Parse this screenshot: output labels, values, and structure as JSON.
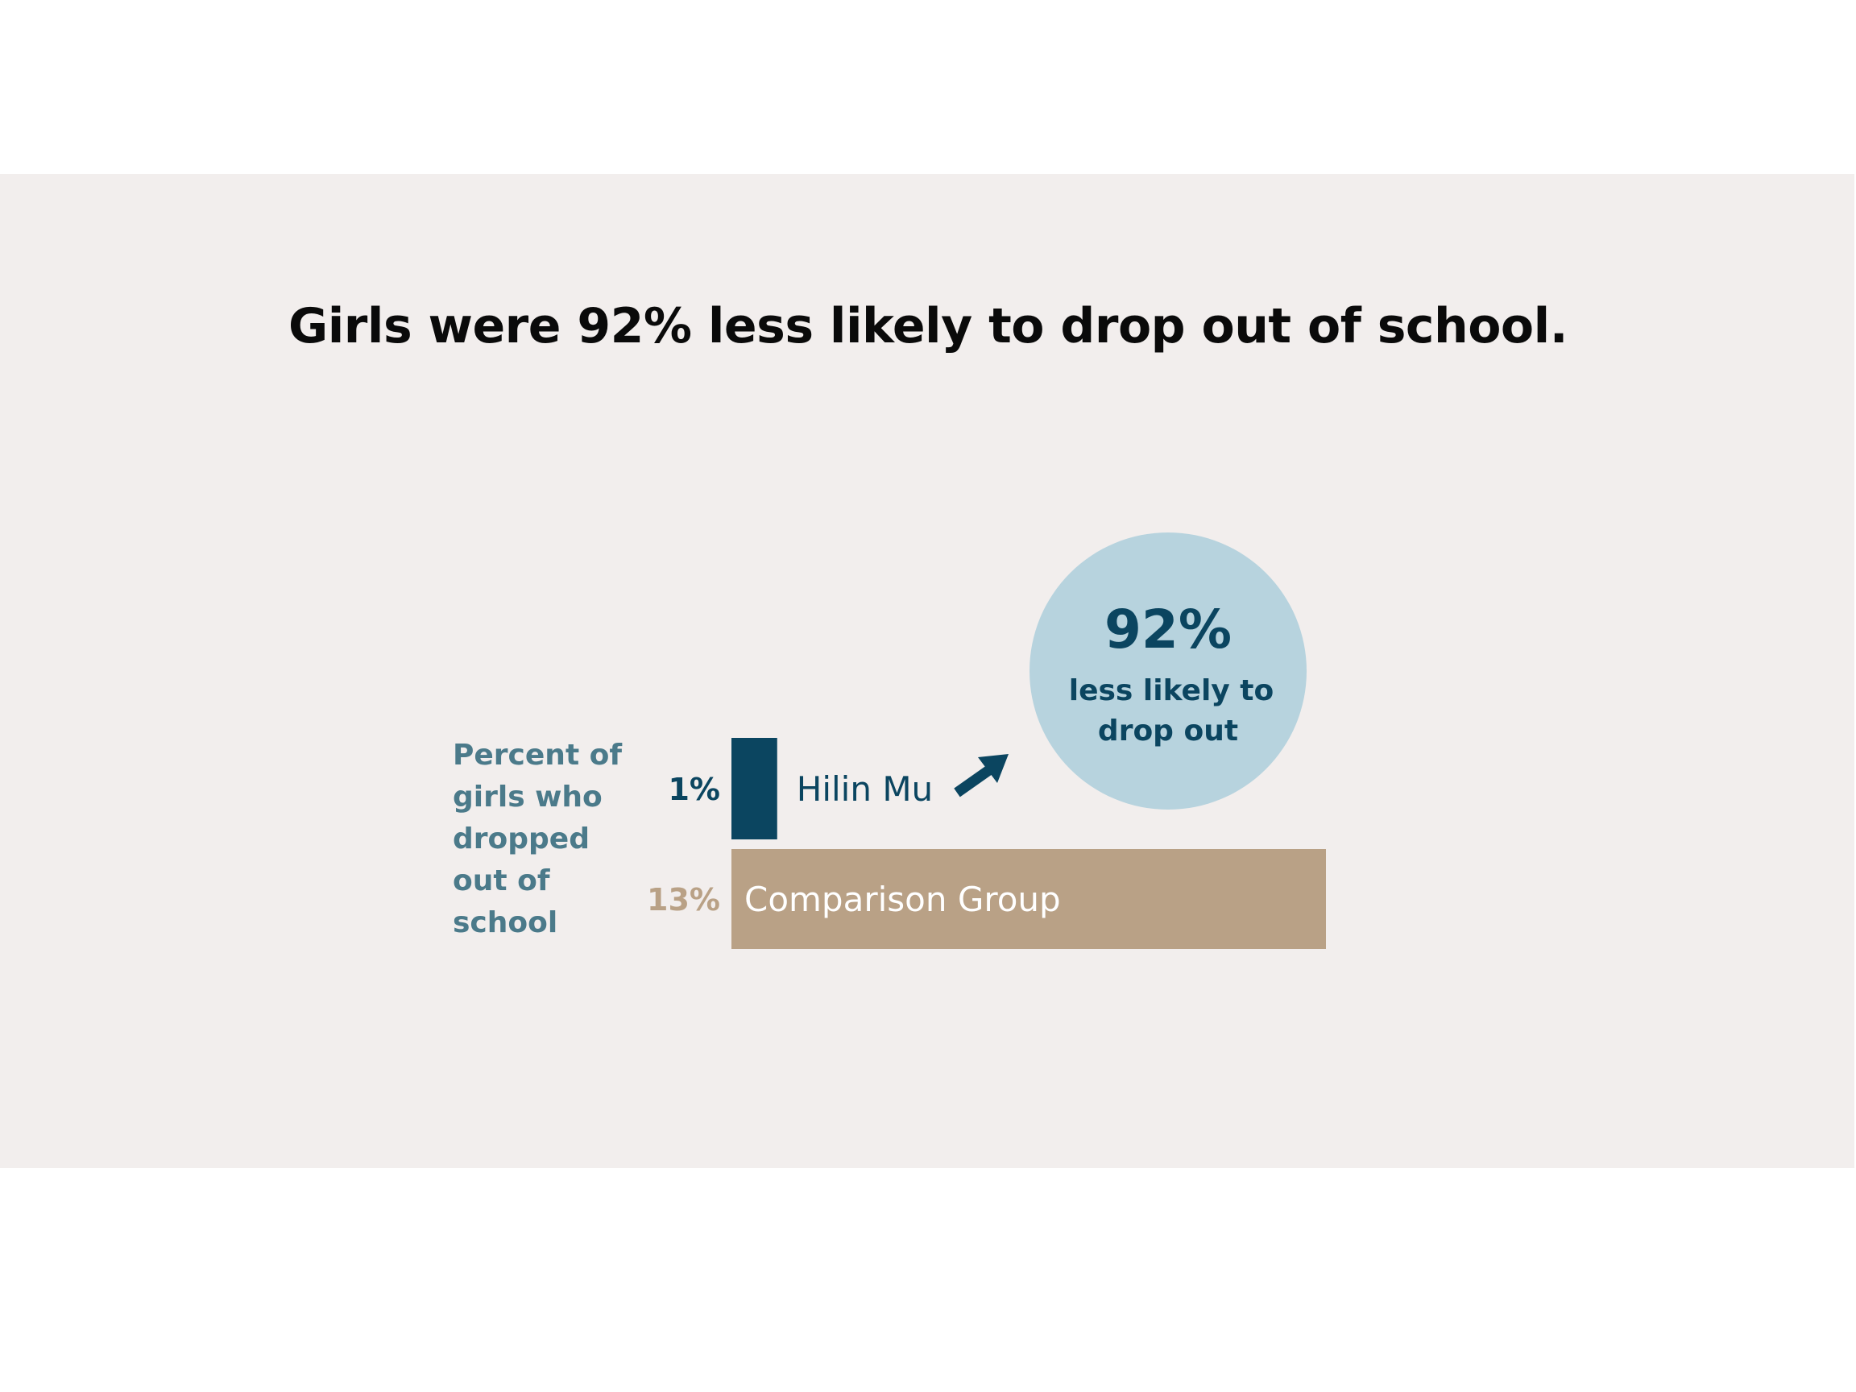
{
  "chart_data": {
    "type": "bar",
    "orientation": "horizontal",
    "title": "Girls were 92% less likely to drop out of school.",
    "ylabel": "Percent of girls who dropped out of school",
    "categories": [
      "Hilin Mu",
      "Comparison Group"
    ],
    "values": [
      1,
      13
    ],
    "value_labels": [
      "1%",
      "13%"
    ],
    "colors": [
      "#0b4560",
      "#b9a186"
    ],
    "label_colors": [
      "#0b4560",
      "#b9a186"
    ],
    "category_label_colors": [
      "#0b4560",
      "#ffffff"
    ],
    "xlim": [
      0,
      13
    ],
    "grid": false,
    "annotation": {
      "value": "92%",
      "text_line1": "less likely to",
      "text_line2": "drop out",
      "circle_color": "#b7d3de",
      "arrow_color": "#0b4560"
    }
  }
}
